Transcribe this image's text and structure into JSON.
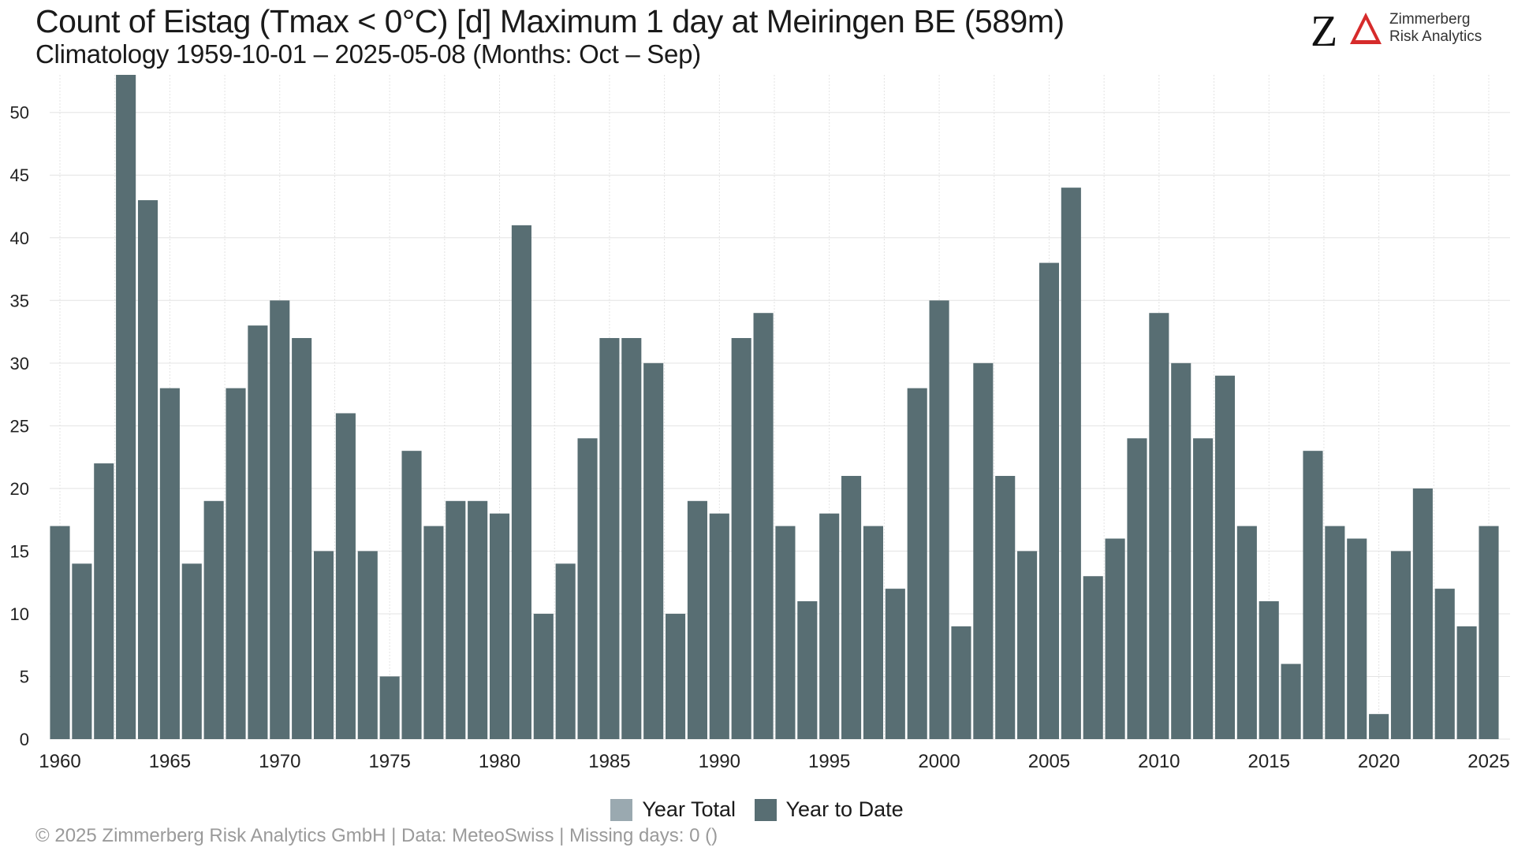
{
  "header": {
    "title": "Count of Eistag (Tmax < 0°C) [d] Maximum 1 day at Meiringen  BE (589m)",
    "subtitle": "Climatology 1959-10-01 – 2025-05-08 (Months: Oct – Sep)"
  },
  "logo": {
    "mark": "Z",
    "line1": "Zimmerberg",
    "line2": "Risk Analytics",
    "accent": "#d62b2b"
  },
  "footer": {
    "text": "©  2025 Zimmerberg Risk Analytics GmbH | Data: MeteoSwiss | Missing days: 0 ()"
  },
  "colors": {
    "year_total": "#9aa9b0",
    "year_to_date": "#586e73",
    "grid": "#e3e3e3"
  },
  "legend": [
    {
      "label": "Year Total",
      "color": "#9aa9b0"
    },
    {
      "label": "Year to Date",
      "color": "#586e73"
    }
  ],
  "chart_data": {
    "type": "bar",
    "x": [
      1960,
      1961,
      1962,
      1963,
      1964,
      1965,
      1966,
      1967,
      1968,
      1969,
      1970,
      1971,
      1972,
      1973,
      1974,
      1975,
      1976,
      1977,
      1978,
      1979,
      1980,
      1981,
      1982,
      1983,
      1984,
      1985,
      1986,
      1987,
      1988,
      1989,
      1990,
      1991,
      1992,
      1993,
      1994,
      1995,
      1996,
      1997,
      1998,
      1999,
      2000,
      2001,
      2002,
      2003,
      2004,
      2005,
      2006,
      2007,
      2008,
      2009,
      2010,
      2011,
      2012,
      2013,
      2014,
      2015,
      2016,
      2017,
      2018,
      2019,
      2020,
      2021,
      2022,
      2023,
      2024,
      2025
    ],
    "series": [
      {
        "name": "Year to Date",
        "values": [
          17,
          14,
          22,
          53,
          43,
          28,
          14,
          19,
          28,
          33,
          35,
          32,
          15,
          26,
          15,
          5,
          23,
          17,
          19,
          19,
          18,
          41,
          10,
          14,
          24,
          32,
          32,
          30,
          10,
          19,
          18,
          32,
          34,
          17,
          11,
          18,
          21,
          17,
          12,
          28,
          35,
          9,
          30,
          21,
          15,
          38,
          44,
          13,
          16,
          24,
          34,
          30,
          24,
          29,
          17,
          11,
          6,
          23,
          17,
          16,
          2,
          15,
          20,
          12,
          9,
          17
        ]
      }
    ],
    "xticks": [
      1960,
      1965,
      1970,
      1975,
      1980,
      1985,
      1990,
      1995,
      2000,
      2005,
      2010,
      2015,
      2020,
      2025
    ],
    "yticks": [
      0,
      5,
      10,
      15,
      20,
      25,
      30,
      35,
      40,
      45,
      50
    ],
    "ylim": [
      0,
      53
    ],
    "grid": true,
    "legend_position": "bottom"
  }
}
